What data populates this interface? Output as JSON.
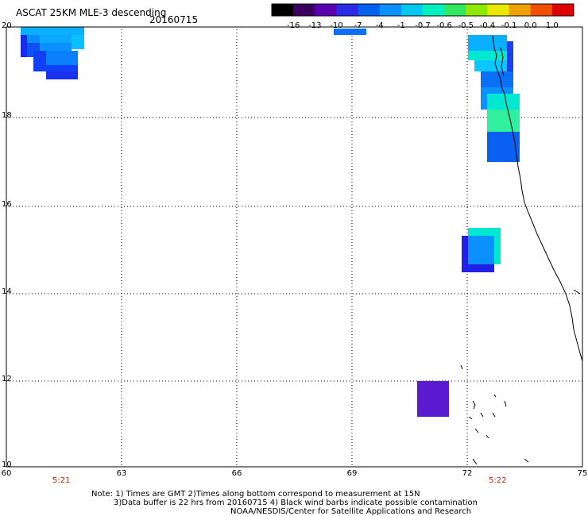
{
  "header": {
    "title": "ASCAT 25KM MLE-3 descending",
    "date": "20160715"
  },
  "colorbar": {
    "labels": [
      "-16",
      "-13",
      "-10",
      "-7",
      "-4",
      "-1",
      "-0.7",
      "-0.6",
      "-0.5",
      "-0.4",
      "-0.1",
      "0.0",
      "1.0"
    ],
    "colors": [
      "#000000",
      "#3a0060",
      "#5a00b0",
      "#2a2ae8",
      "#0060f0",
      "#0a90ff",
      "#00c8f0",
      "#00f0c0",
      "#30e860",
      "#90e800",
      "#e8e800",
      "#f0a000",
      "#f05000",
      "#e00000"
    ]
  },
  "axes": {
    "y_ticks": [
      "20",
      "18",
      "16",
      "14",
      "12",
      "10"
    ],
    "x_ticks": [
      "60",
      "63",
      "66",
      "69",
      "72",
      "75"
    ],
    "times": [
      "5:21",
      "5:22"
    ]
  },
  "notes": {
    "line1": "Note: 1) Times are GMT 2)Times along bottom correspond to measurement at 15N",
    "line2": "3)Data buffer is 22 hrs from 20160715 4) Black wind barbs indicate possible contamination",
    "line3": "NOAA/NESDIS/Center for Satellite Applications and Research"
  },
  "map_data": {
    "lon_range": [
      60,
      75
    ],
    "lat_range": [
      10,
      20
    ]
  }
}
